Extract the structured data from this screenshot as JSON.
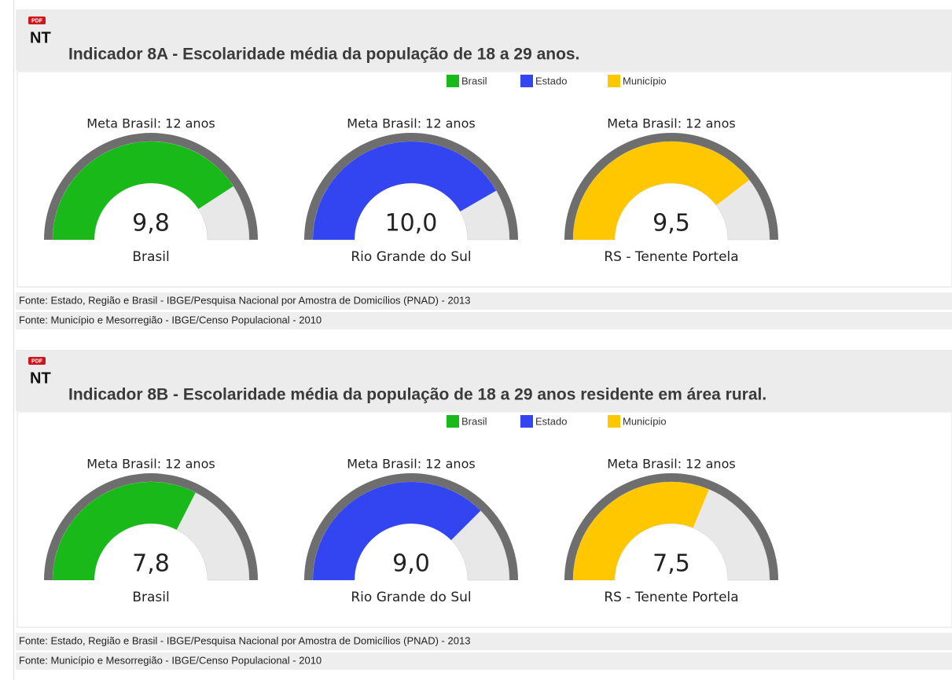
{
  "sections": [
    {
      "icon_badge": "PDF",
      "icon": "NT",
      "title": "Indicador 8A - Escolaridade média da população de 18 a 29 anos.",
      "legend": [
        {
          "name": "Brasil",
          "color": "#19b919"
        },
        {
          "name": "Estado",
          "color": "#3345f0"
        },
        {
          "name": "Município",
          "color": "#fec700"
        }
      ],
      "sources": [
        "Fonte: Estado, Região e Brasil - IBGE/Pesquisa Nacional por Amostra de Domicílios (PNAD) - 2013",
        "Fonte: Município e Mesorregião - IBGE/Censo Populacional - 2010"
      ]
    },
    {
      "icon_badge": "PDF",
      "icon": "NT",
      "title": "Indicador 8B - Escolaridade média da população de 18 a 29 anos residente em área rural.",
      "legend": [
        {
          "name": "Brasil",
          "color": "#19b919"
        },
        {
          "name": "Estado",
          "color": "#3345f0"
        },
        {
          "name": "Município",
          "color": "#fec700"
        }
      ],
      "sources": [
        "Fonte: Estado, Região e Brasil - IBGE/Pesquisa Nacional por Amostra de Domicílios (PNAD) - 2013",
        "Fonte: Município e Mesorregião - IBGE/Censo Populacional - 2010"
      ]
    }
  ],
  "chart_data": [
    {
      "type": "gauge",
      "title": "Meta Brasil: 12 anos",
      "value": 9.8,
      "value_label": "9,8",
      "name": "Brasil",
      "color": "#19b919",
      "ylim": [
        0,
        12
      ]
    },
    {
      "type": "gauge",
      "title": "Meta Brasil: 12 anos",
      "value": 10.0,
      "value_label": "10,0",
      "name": "Rio Grande do Sul",
      "color": "#3345f0",
      "ylim": [
        0,
        12
      ]
    },
    {
      "type": "gauge",
      "title": "Meta Brasil: 12 anos",
      "value": 9.5,
      "value_label": "9,5",
      "name": "RS - Tenente Portela",
      "color": "#fec700",
      "ylim": [
        0,
        12
      ]
    },
    {
      "type": "gauge",
      "title": "Meta Brasil: 12 anos",
      "value": 7.8,
      "value_label": "7,8",
      "name": "Brasil",
      "color": "#19b919",
      "ylim": [
        0,
        12
      ]
    },
    {
      "type": "gauge",
      "title": "Meta Brasil: 12 anos",
      "value": 9.0,
      "value_label": "9,0",
      "name": "Rio Grande do Sul",
      "color": "#3345f0",
      "ylim": [
        0,
        12
      ]
    },
    {
      "type": "gauge",
      "title": "Meta Brasil: 12 anos",
      "value": 7.5,
      "value_label": "7,5",
      "name": "RS - Tenente Portela",
      "color": "#fec700",
      "ylim": [
        0,
        12
      ]
    }
  ]
}
